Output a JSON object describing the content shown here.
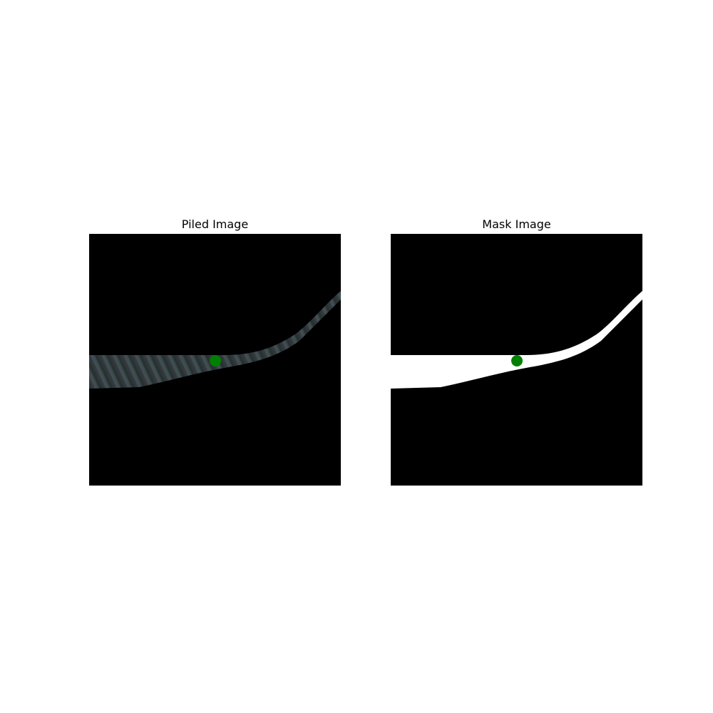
{
  "figure": {
    "panels": [
      {
        "title": "Piled Image"
      },
      {
        "title": "Mask Image"
      }
    ],
    "colors": {
      "background": "#000000",
      "mask_foreground": "#ffffff",
      "piled_foreground": "#2e3a3e",
      "point_marker": "#008000"
    },
    "icons": {
      "point_marker": "green-circle-point-marker"
    }
  }
}
